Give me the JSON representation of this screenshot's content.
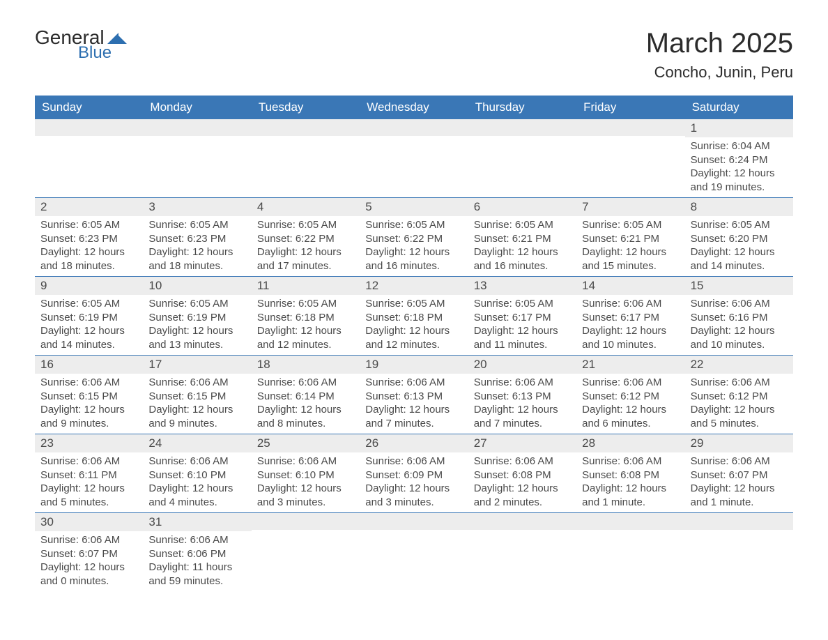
{
  "logo": {
    "text_general": "General",
    "text_blue": "Blue",
    "shape_color": "#2d6fb0"
  },
  "title": "March 2025",
  "location": "Concho, Junin, Peru",
  "colors": {
    "header_bg": "#3a77b6",
    "header_text": "#ffffff",
    "daynum_bg": "#ededed",
    "text": "#4a4a4a",
    "divider": "#3a77b6",
    "page_bg": "#ffffff"
  },
  "typography": {
    "title_fontsize": 40,
    "location_fontsize": 22,
    "weekday_fontsize": 17,
    "daynum_fontsize": 17,
    "content_fontsize": 15
  },
  "weekdays": [
    "Sunday",
    "Monday",
    "Tuesday",
    "Wednesday",
    "Thursday",
    "Friday",
    "Saturday"
  ],
  "weeks": [
    [
      {
        "empty": true
      },
      {
        "empty": true
      },
      {
        "empty": true
      },
      {
        "empty": true
      },
      {
        "empty": true
      },
      {
        "empty": true
      },
      {
        "day": "1",
        "sunrise": "Sunrise: 6:04 AM",
        "sunset": "Sunset: 6:24 PM",
        "daylight1": "Daylight: 12 hours",
        "daylight2": "and 19 minutes."
      }
    ],
    [
      {
        "day": "2",
        "sunrise": "Sunrise: 6:05 AM",
        "sunset": "Sunset: 6:23 PM",
        "daylight1": "Daylight: 12 hours",
        "daylight2": "and 18 minutes."
      },
      {
        "day": "3",
        "sunrise": "Sunrise: 6:05 AM",
        "sunset": "Sunset: 6:23 PM",
        "daylight1": "Daylight: 12 hours",
        "daylight2": "and 18 minutes."
      },
      {
        "day": "4",
        "sunrise": "Sunrise: 6:05 AM",
        "sunset": "Sunset: 6:22 PM",
        "daylight1": "Daylight: 12 hours",
        "daylight2": "and 17 minutes."
      },
      {
        "day": "5",
        "sunrise": "Sunrise: 6:05 AM",
        "sunset": "Sunset: 6:22 PM",
        "daylight1": "Daylight: 12 hours",
        "daylight2": "and 16 minutes."
      },
      {
        "day": "6",
        "sunrise": "Sunrise: 6:05 AM",
        "sunset": "Sunset: 6:21 PM",
        "daylight1": "Daylight: 12 hours",
        "daylight2": "and 16 minutes."
      },
      {
        "day": "7",
        "sunrise": "Sunrise: 6:05 AM",
        "sunset": "Sunset: 6:21 PM",
        "daylight1": "Daylight: 12 hours",
        "daylight2": "and 15 minutes."
      },
      {
        "day": "8",
        "sunrise": "Sunrise: 6:05 AM",
        "sunset": "Sunset: 6:20 PM",
        "daylight1": "Daylight: 12 hours",
        "daylight2": "and 14 minutes."
      }
    ],
    [
      {
        "day": "9",
        "sunrise": "Sunrise: 6:05 AM",
        "sunset": "Sunset: 6:19 PM",
        "daylight1": "Daylight: 12 hours",
        "daylight2": "and 14 minutes."
      },
      {
        "day": "10",
        "sunrise": "Sunrise: 6:05 AM",
        "sunset": "Sunset: 6:19 PM",
        "daylight1": "Daylight: 12 hours",
        "daylight2": "and 13 minutes."
      },
      {
        "day": "11",
        "sunrise": "Sunrise: 6:05 AM",
        "sunset": "Sunset: 6:18 PM",
        "daylight1": "Daylight: 12 hours",
        "daylight2": "and 12 minutes."
      },
      {
        "day": "12",
        "sunrise": "Sunrise: 6:05 AM",
        "sunset": "Sunset: 6:18 PM",
        "daylight1": "Daylight: 12 hours",
        "daylight2": "and 12 minutes."
      },
      {
        "day": "13",
        "sunrise": "Sunrise: 6:05 AM",
        "sunset": "Sunset: 6:17 PM",
        "daylight1": "Daylight: 12 hours",
        "daylight2": "and 11 minutes."
      },
      {
        "day": "14",
        "sunrise": "Sunrise: 6:06 AM",
        "sunset": "Sunset: 6:17 PM",
        "daylight1": "Daylight: 12 hours",
        "daylight2": "and 10 minutes."
      },
      {
        "day": "15",
        "sunrise": "Sunrise: 6:06 AM",
        "sunset": "Sunset: 6:16 PM",
        "daylight1": "Daylight: 12 hours",
        "daylight2": "and 10 minutes."
      }
    ],
    [
      {
        "day": "16",
        "sunrise": "Sunrise: 6:06 AM",
        "sunset": "Sunset: 6:15 PM",
        "daylight1": "Daylight: 12 hours",
        "daylight2": "and 9 minutes."
      },
      {
        "day": "17",
        "sunrise": "Sunrise: 6:06 AM",
        "sunset": "Sunset: 6:15 PM",
        "daylight1": "Daylight: 12 hours",
        "daylight2": "and 9 minutes."
      },
      {
        "day": "18",
        "sunrise": "Sunrise: 6:06 AM",
        "sunset": "Sunset: 6:14 PM",
        "daylight1": "Daylight: 12 hours",
        "daylight2": "and 8 minutes."
      },
      {
        "day": "19",
        "sunrise": "Sunrise: 6:06 AM",
        "sunset": "Sunset: 6:13 PM",
        "daylight1": "Daylight: 12 hours",
        "daylight2": "and 7 minutes."
      },
      {
        "day": "20",
        "sunrise": "Sunrise: 6:06 AM",
        "sunset": "Sunset: 6:13 PM",
        "daylight1": "Daylight: 12 hours",
        "daylight2": "and 7 minutes."
      },
      {
        "day": "21",
        "sunrise": "Sunrise: 6:06 AM",
        "sunset": "Sunset: 6:12 PM",
        "daylight1": "Daylight: 12 hours",
        "daylight2": "and 6 minutes."
      },
      {
        "day": "22",
        "sunrise": "Sunrise: 6:06 AM",
        "sunset": "Sunset: 6:12 PM",
        "daylight1": "Daylight: 12 hours",
        "daylight2": "and 5 minutes."
      }
    ],
    [
      {
        "day": "23",
        "sunrise": "Sunrise: 6:06 AM",
        "sunset": "Sunset: 6:11 PM",
        "daylight1": "Daylight: 12 hours",
        "daylight2": "and 5 minutes."
      },
      {
        "day": "24",
        "sunrise": "Sunrise: 6:06 AM",
        "sunset": "Sunset: 6:10 PM",
        "daylight1": "Daylight: 12 hours",
        "daylight2": "and 4 minutes."
      },
      {
        "day": "25",
        "sunrise": "Sunrise: 6:06 AM",
        "sunset": "Sunset: 6:10 PM",
        "daylight1": "Daylight: 12 hours",
        "daylight2": "and 3 minutes."
      },
      {
        "day": "26",
        "sunrise": "Sunrise: 6:06 AM",
        "sunset": "Sunset: 6:09 PM",
        "daylight1": "Daylight: 12 hours",
        "daylight2": "and 3 minutes."
      },
      {
        "day": "27",
        "sunrise": "Sunrise: 6:06 AM",
        "sunset": "Sunset: 6:08 PM",
        "daylight1": "Daylight: 12 hours",
        "daylight2": "and 2 minutes."
      },
      {
        "day": "28",
        "sunrise": "Sunrise: 6:06 AM",
        "sunset": "Sunset: 6:08 PM",
        "daylight1": "Daylight: 12 hours",
        "daylight2": "and 1 minute."
      },
      {
        "day": "29",
        "sunrise": "Sunrise: 6:06 AM",
        "sunset": "Sunset: 6:07 PM",
        "daylight1": "Daylight: 12 hours",
        "daylight2": "and 1 minute."
      }
    ],
    [
      {
        "day": "30",
        "sunrise": "Sunrise: 6:06 AM",
        "sunset": "Sunset: 6:07 PM",
        "daylight1": "Daylight: 12 hours",
        "daylight2": "and 0 minutes."
      },
      {
        "day": "31",
        "sunrise": "Sunrise: 6:06 AM",
        "sunset": "Sunset: 6:06 PM",
        "daylight1": "Daylight: 11 hours",
        "daylight2": "and 59 minutes."
      },
      {
        "empty": true
      },
      {
        "empty": true
      },
      {
        "empty": true
      },
      {
        "empty": true
      },
      {
        "empty": true
      }
    ]
  ]
}
